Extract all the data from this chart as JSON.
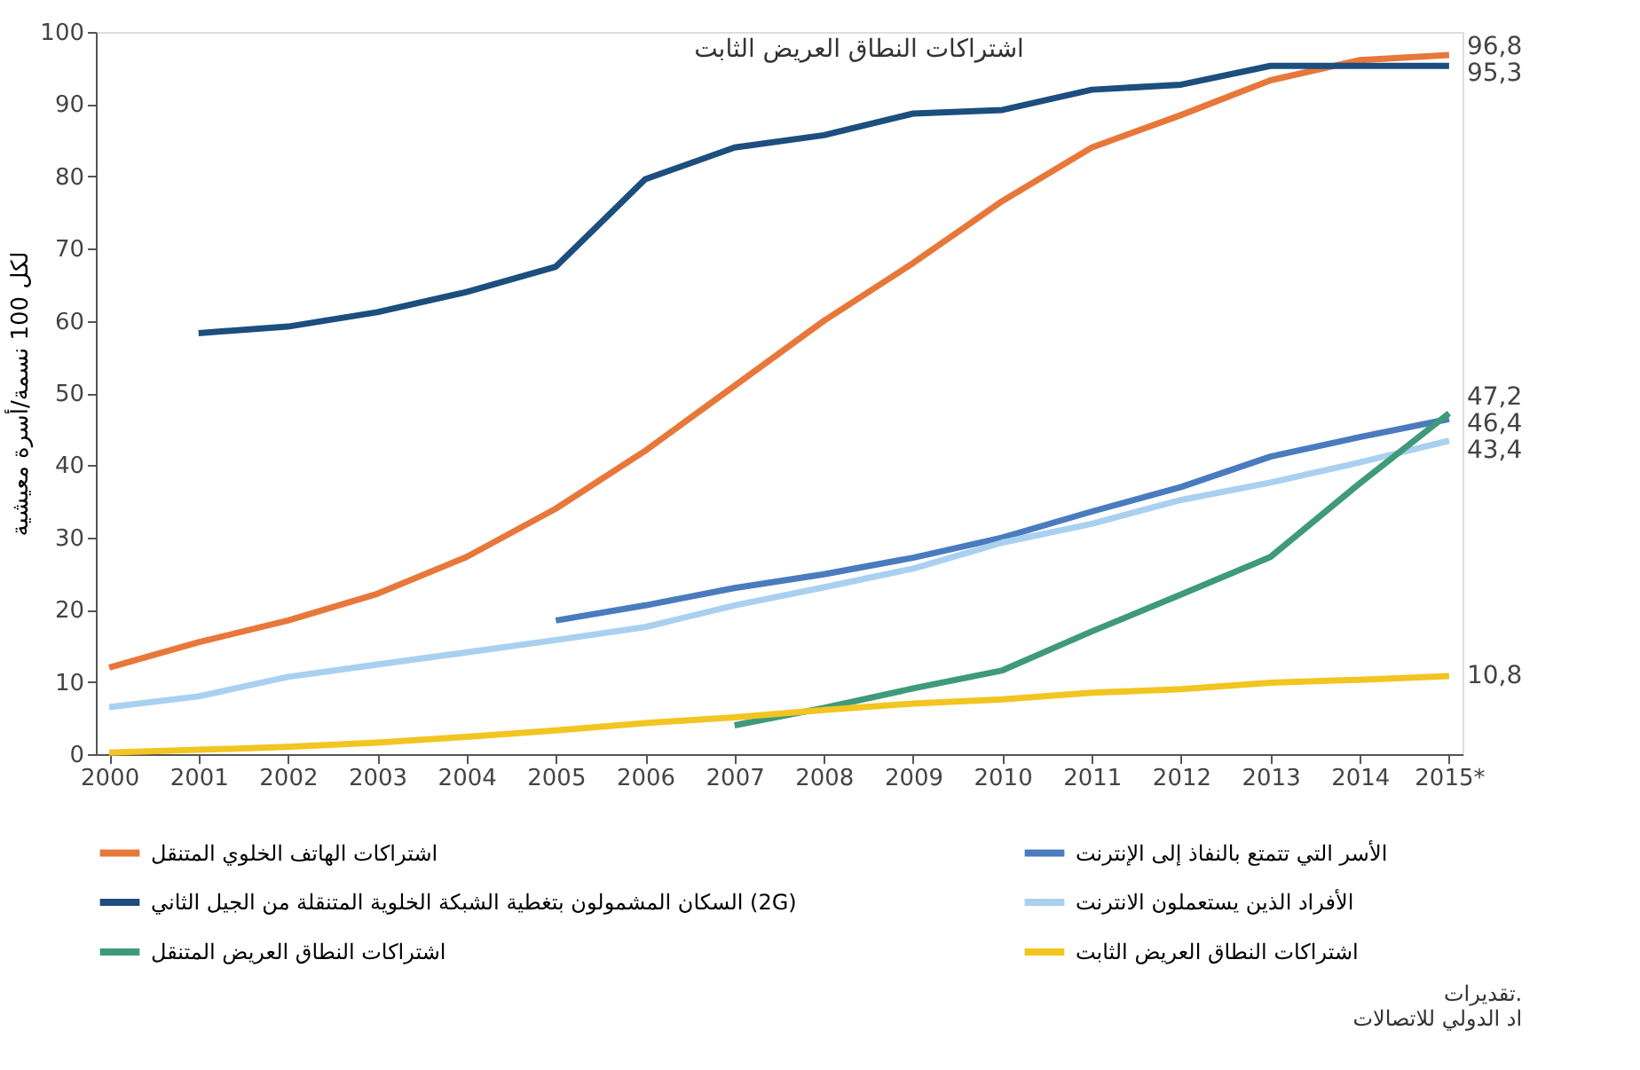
{
  "chart_data": {
    "type": "line",
    "categories": [
      "2000",
      "2001",
      "2002",
      "2003",
      "2004",
      "2005",
      "2006",
      "2007",
      "2008",
      "2009",
      "2010",
      "2011",
      "2012",
      "2013",
      "2014",
      "2015*"
    ],
    "ylabel": "لكل 100 نسمة/أسرة معيشية",
    "ylim": [
      0,
      100
    ],
    "yticks": [
      0,
      10,
      20,
      30,
      40,
      50,
      60,
      70,
      80,
      90,
      100
    ],
    "grid": false,
    "legend": "bottom",
    "line_style": "solid",
    "marker": "none",
    "annotations": [
      "اشتراكات النطاق العريض الثابت",
      "تقديرات.",
      "اد الدولي للاتصالات"
    ],
    "series": [
      {
        "name": "اشتراكات الهاتف الخلوي المتنقل",
        "color": "#e8773a",
        "values": [
          12,
          15.5,
          18.5,
          22.2,
          27.3,
          34,
          42,
          51,
          60,
          68,
          76.6,
          84,
          88.5,
          93.3,
          96.1,
          96.8
        ],
        "value_labels": [
          null,
          null,
          null,
          null,
          null,
          null,
          null,
          null,
          null,
          null,
          null,
          null,
          null,
          null,
          null,
          "96,8"
        ]
      },
      {
        "name": "الأسر التي تتمتع بالنفاذ إلى الإنترنت",
        "color": "#4a7bbf",
        "values": [
          null,
          null,
          null,
          null,
          null,
          18.5,
          20.6,
          23,
          24.9,
          27.2,
          30,
          33.6,
          37,
          41.2,
          43.9,
          46.4
        ],
        "value_labels": [
          null,
          null,
          null,
          null,
          null,
          null,
          null,
          null,
          null,
          null,
          null,
          null,
          null,
          null,
          null,
          "46,4"
        ]
      },
      {
        "name": "السكان المشمولون بتغطية الشبكة الخلوية المتنقلة من الجيل الثاني (2G)",
        "color": "#1c4e7e",
        "values": [
          null,
          58.3,
          59.2,
          61.2,
          64,
          67.5,
          79.6,
          84,
          85.7,
          88.7,
          89.2,
          92,
          92.7,
          95.3,
          95.3,
          95.3
        ],
        "value_labels": [
          null,
          null,
          null,
          null,
          null,
          null,
          null,
          null,
          null,
          null,
          null,
          null,
          null,
          null,
          null,
          "95,3"
        ]
      },
      {
        "name": "الأفراد الذين يستعملون الانترنت",
        "color": "#a9d0ef",
        "values": [
          6.5,
          8,
          10.7,
          12.4,
          14.1,
          15.8,
          17.6,
          20.6,
          23.1,
          25.7,
          29.3,
          31.9,
          35.2,
          37.6,
          40.4,
          43.4
        ],
        "value_labels": [
          null,
          null,
          null,
          null,
          null,
          null,
          null,
          null,
          null,
          null,
          null,
          null,
          null,
          null,
          null,
          "43,4"
        ]
      },
      {
        "name": "اشتراكات النطاق العريض المتنقل",
        "color": "#3f9a7a",
        "values": [
          null,
          null,
          null,
          null,
          null,
          null,
          null,
          4,
          6.4,
          9.1,
          11.6,
          17,
          22.1,
          27.3,
          37.5,
          47.2
        ],
        "value_labels": [
          null,
          null,
          null,
          null,
          null,
          null,
          null,
          null,
          null,
          null,
          null,
          null,
          null,
          null,
          null,
          "47,2"
        ]
      },
      {
        "name": "اشتراكات النطاق العريض الثابت",
        "color": "#f2c520",
        "values": [
          0.2,
          0.6,
          1,
          1.6,
          2.4,
          3.3,
          4.3,
          5.1,
          6.1,
          7,
          7.6,
          8.5,
          9,
          9.9,
          10.3,
          10.8
        ],
        "value_labels": [
          null,
          null,
          null,
          null,
          null,
          null,
          null,
          null,
          null,
          null,
          null,
          null,
          null,
          null,
          null,
          "10,8"
        ]
      }
    ]
  }
}
